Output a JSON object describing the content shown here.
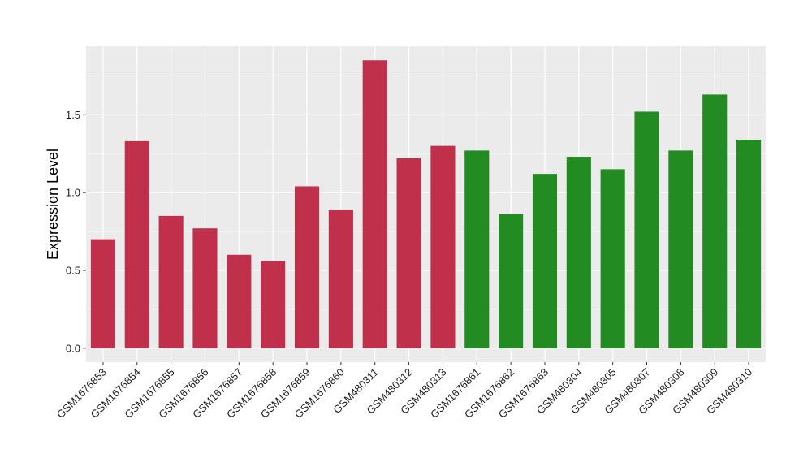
{
  "chart_data": {
    "type": "bar",
    "title": "",
    "xlabel": "",
    "ylabel": "Expression Level",
    "ylim": [
      -0.09,
      1.94
    ],
    "yticks": [
      0.0,
      0.5,
      1.0,
      1.5
    ],
    "ytick_labels": [
      "0.0",
      "0.5",
      "1.0",
      "1.5"
    ],
    "grid": true,
    "legend": "none",
    "panel_background": "#ebebeb",
    "grid_color": "#ffffff",
    "categories": [
      "GSM1676853",
      "GSM1676854",
      "GSM1676855",
      "GSM1676856",
      "GSM1676857",
      "GSM1676858",
      "GSM1676859",
      "GSM1676860",
      "GSM480311",
      "GSM480312",
      "GSM480313",
      "GSM1676861",
      "GSM1676862",
      "GSM1676863",
      "GSM480304",
      "GSM480305",
      "GSM480307",
      "GSM480308",
      "GSM480309",
      "GSM480310"
    ],
    "values": [
      0.7,
      1.33,
      0.85,
      0.77,
      0.6,
      0.56,
      1.04,
      0.89,
      1.85,
      1.22,
      1.3,
      1.27,
      0.86,
      1.12,
      1.23,
      1.15,
      1.52,
      1.27,
      1.63,
      1.34
    ],
    "colors": [
      "#c1304a",
      "#c1304a",
      "#c1304a",
      "#c1304a",
      "#c1304a",
      "#c1304a",
      "#c1304a",
      "#c1304a",
      "#c1304a",
      "#c1304a",
      "#c1304a",
      "#228b22",
      "#228b22",
      "#228b22",
      "#228b22",
      "#228b22",
      "#228b22",
      "#228b22",
      "#228b22",
      "#228b22"
    ]
  }
}
